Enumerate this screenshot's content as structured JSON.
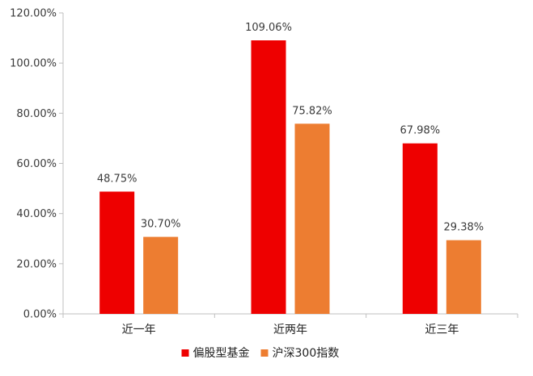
{
  "chart_data": {
    "type": "bar",
    "categories": [
      "近一年",
      "近两年",
      "近三年"
    ],
    "series": [
      {
        "name": "偏股型基金",
        "values": [
          48.75,
          109.06,
          67.98
        ],
        "labels": [
          "48.75%",
          "109.06%",
          "67.98%"
        ],
        "color": "#EE0000"
      },
      {
        "name": "沪深300指数",
        "values": [
          30.7,
          75.82,
          29.38
        ],
        "labels": [
          "30.70%",
          "75.82%",
          "29.38%"
        ],
        "color": "#ED7D31"
      }
    ],
    "ylim": [
      0,
      120
    ],
    "yticks": [
      0,
      20,
      40,
      60,
      80,
      100,
      120
    ],
    "ytick_labels": [
      "0.00%",
      "20.00%",
      "40.00%",
      "60.00%",
      "80.00%",
      "100.00%",
      "120.00%"
    ],
    "grid": false,
    "legend_position": "bottom"
  }
}
